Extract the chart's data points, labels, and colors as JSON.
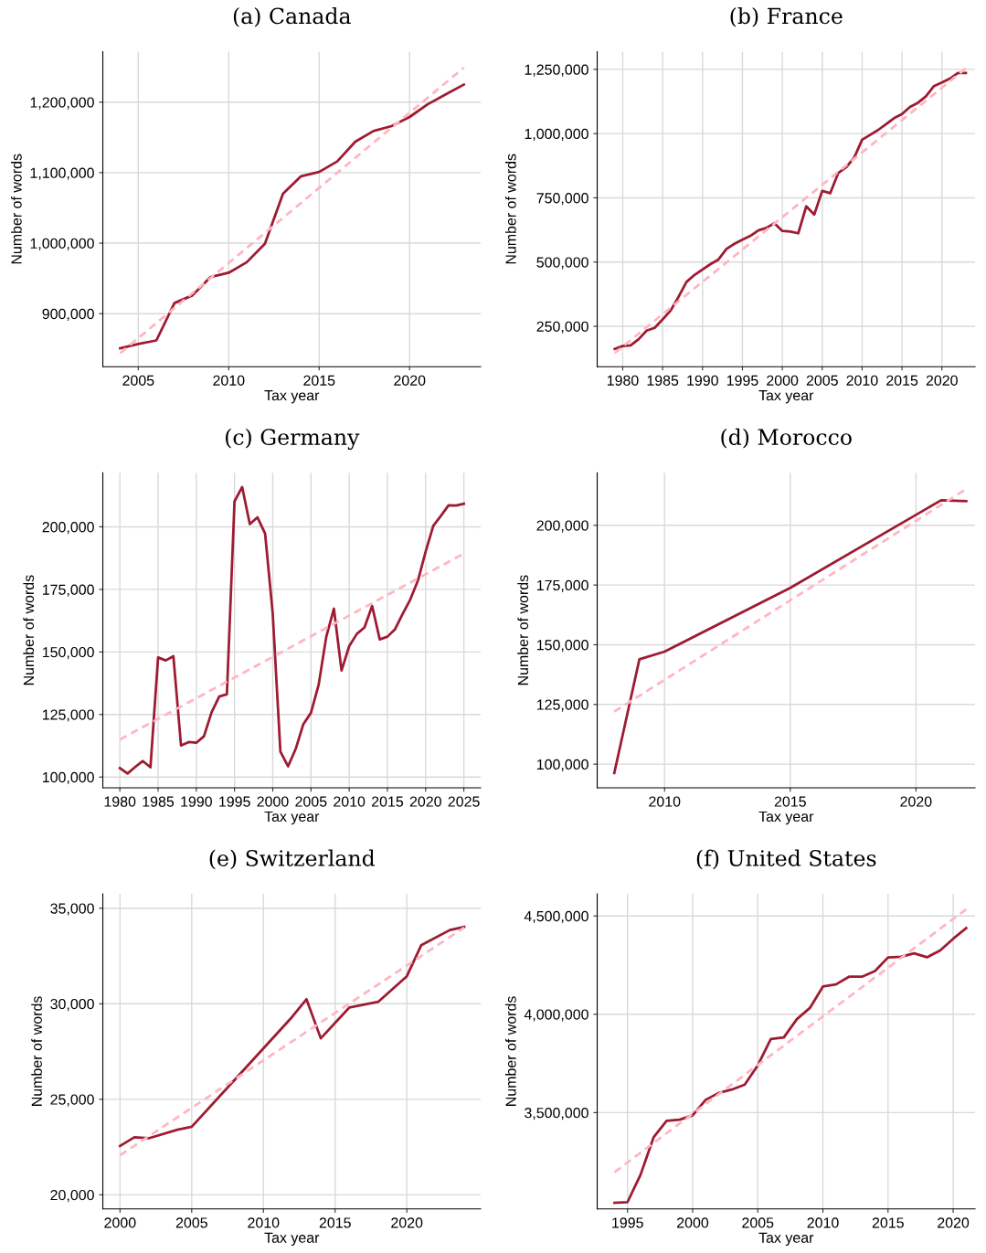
{
  "chart_data": [
    {
      "type": "line",
      "title": "(a) Canada",
      "xlabel": "Tax year",
      "ylabel": "Number of words",
      "grid": true,
      "xlim": [
        2003.04,
        2023.93
      ],
      "ylim": [
        824800,
        1271700
      ],
      "xticks": [
        2005,
        2010,
        2015,
        2020
      ],
      "yticks": [
        {
          "value": 900000,
          "label": "900,000"
        },
        {
          "value": 1000000,
          "label": "1,000,000"
        },
        {
          "value": 1100000,
          "label": "1,100,000"
        },
        {
          "value": 1200000,
          "label": "1,200,000"
        }
      ],
      "series": [
        {
          "color": "#9e1b32",
          "line_style": "solid",
          "x": [
            2004,
            2005,
            2006,
            2007,
            2008,
            2009,
            2010,
            2011,
            2012,
            2013,
            2014,
            2015,
            2016,
            2017,
            2018,
            2019,
            2020,
            2021,
            2022,
            2023
          ],
          "values": [
            851000,
            857000,
            862000,
            915000,
            926000,
            952000,
            958000,
            973000,
            999000,
            1070000,
            1095000,
            1101000,
            1116000,
            1144000,
            1159000,
            1166000,
            1179000,
            1197000,
            1211000,
            1225000
          ]
        },
        {
          "color": "#ffb6c1",
          "line_style": "dashed",
          "x": [
            2004,
            2023
          ],
          "values": [
            844000,
            1249000
          ]
        }
      ]
    },
    {
      "type": "line",
      "title": "(b) France",
      "xlabel": "Tax year",
      "ylabel": "Number of words",
      "grid": true,
      "xlim": [
        1976.8,
        2024.15
      ],
      "ylim": [
        92900,
        1319000
      ],
      "xticks": [
        1980,
        1985,
        1990,
        1995,
        2000,
        2005,
        2010,
        2015,
        2020
      ],
      "yticks": [
        {
          "value": 250000,
          "label": "250,000"
        },
        {
          "value": 500000,
          "label": "500,000"
        },
        {
          "value": 750000,
          "label": "750,000"
        },
        {
          "value": 1000000,
          "label": "1,000,000"
        },
        {
          "value": 1250000,
          "label": "1,250,000"
        }
      ],
      "series": [
        {
          "color": "#9e1b32",
          "line_style": "solid",
          "x": [
            1979,
            1980,
            1981,
            1982,
            1983,
            1984,
            1985,
            1986,
            1987,
            1988,
            1989,
            1990,
            1991,
            1992,
            1993,
            1994,
            1995,
            1996,
            1997,
            1998,
            1999,
            2000,
            2001,
            2002,
            2003,
            2004,
            2005,
            2006,
            2007,
            2008,
            2009,
            2010,
            2011,
            2012,
            2013,
            2014,
            2015,
            2016,
            2017,
            2018,
            2019,
            2020,
            2021,
            2022,
            2023
          ],
          "values": [
            162000,
            173000,
            176000,
            200000,
            233000,
            244000,
            277000,
            311000,
            365000,
            423000,
            450000,
            471000,
            492000,
            510000,
            551000,
            571000,
            587000,
            602000,
            623000,
            633000,
            651000,
            621000,
            619000,
            612000,
            717000,
            685000,
            777000,
            768000,
            846000,
            869000,
            906000,
            976000,
            995000,
            1014000,
            1037000,
            1060000,
            1076000,
            1104000,
            1120000,
            1145000,
            1185000,
            1199000,
            1214000,
            1236000,
            1236000
          ]
        },
        {
          "color": "#ffb6c1",
          "line_style": "dashed",
          "x": [
            1979,
            2023
          ],
          "values": [
            146000,
            1254000
          ]
        }
      ]
    },
    {
      "type": "line",
      "title": "(c) Germany",
      "xlabel": "Tax year",
      "ylabel": "Number of words",
      "grid": true,
      "xlim": [
        1977.77,
        2027.2
      ],
      "ylim": [
        95700,
        221600
      ],
      "xticks": [
        1980,
        1985,
        1990,
        1995,
        2000,
        2005,
        2010,
        2015,
        2020,
        2025
      ],
      "yticks": [
        {
          "value": 100000,
          "label": "100,000"
        },
        {
          "value": 125000,
          "label": "125,000"
        },
        {
          "value": 150000,
          "label": "150,000"
        },
        {
          "value": 175000,
          "label": "175,000"
        },
        {
          "value": 200000,
          "label": "200,000"
        }
      ],
      "series": [
        {
          "color": "#9e1b32",
          "line_style": "solid",
          "x": [
            1980,
            1981,
            1982,
            1983,
            1984,
            1985,
            1986,
            1987,
            1988,
            1989,
            1990,
            1991,
            1992,
            1993,
            1994,
            1995,
            1996,
            1997,
            1998,
            1999,
            2000,
            2001,
            2002,
            2003,
            2004,
            2005,
            2006,
            2007,
            2008,
            2009,
            2010,
            2011,
            2012,
            2013,
            2014,
            2015,
            2016,
            2017,
            2018,
            2019,
            2020,
            2021,
            2022,
            2023,
            2024,
            2025
          ],
          "values": [
            103600,
            101400,
            104000,
            106400,
            103900,
            147800,
            146600,
            148300,
            112600,
            114000,
            113700,
            116300,
            125900,
            132200,
            133100,
            210200,
            215900,
            201100,
            203800,
            197300,
            165200,
            110200,
            104300,
            111200,
            121100,
            125700,
            136800,
            156000,
            167300,
            142600,
            152300,
            157200,
            159800,
            168400,
            155000,
            156100,
            159100,
            165200,
            171000,
            178600,
            190100,
            200400,
            204400,
            208600,
            208500,
            209200
          ]
        },
        {
          "color": "#ffb6c1",
          "line_style": "dashed",
          "x": [
            1980,
            2025
          ],
          "values": [
            115000,
            189300
          ]
        }
      ]
    },
    {
      "type": "line",
      "title": "(d) Morocco",
      "xlabel": "Tax year",
      "ylabel": "Number of words",
      "grid": true,
      "xlim": [
        2007.32,
        2022.35
      ],
      "ylim": [
        90100,
        222000
      ],
      "xticks": [
        2010,
        2015,
        2020
      ],
      "yticks": [
        {
          "value": 100000,
          "label": "100,000"
        },
        {
          "value": 125000,
          "label": "125,000"
        },
        {
          "value": 150000,
          "label": "150,000"
        },
        {
          "value": 175000,
          "label": "175,000"
        },
        {
          "value": 200000,
          "label": "200,000"
        }
      ],
      "series": [
        {
          "color": "#9e1b32",
          "line_style": "solid",
          "x": [
            2008,
            2009,
            2010,
            2015,
            2021,
            2022
          ],
          "values": [
            96300,
            143900,
            147100,
            173800,
            210500,
            210100
          ]
        },
        {
          "color": "#ffb6c1",
          "line_style": "dashed",
          "x": [
            2008,
            2022
          ],
          "values": [
            122000,
            215200
          ]
        }
      ]
    },
    {
      "type": "line",
      "title": "(e) Switzerland",
      "xlabel": "Tax year",
      "ylabel": "Number of words",
      "grid": true,
      "xlim": [
        1998.8,
        2025.15
      ],
      "ylim": [
        19260,
        35750
      ],
      "xticks": [
        2000,
        2005,
        2010,
        2015,
        2020
      ],
      "yticks": [
        {
          "value": 20000,
          "label": "20,000"
        },
        {
          "value": 25000,
          "label": "25,000"
        },
        {
          "value": 30000,
          "label": "30,000"
        },
        {
          "value": 35000,
          "label": "35,000"
        }
      ],
      "series": [
        {
          "color": "#9e1b32",
          "line_style": "solid",
          "x": [
            2000,
            2001,
            2002,
            2004,
            2005,
            2012,
            2013,
            2014,
            2016,
            2018,
            2020,
            2021,
            2023,
            2024
          ],
          "values": [
            22560,
            23010,
            22960,
            23410,
            23560,
            29310,
            30240,
            28190,
            29810,
            30100,
            31440,
            33060,
            33860,
            34020
          ]
        },
        {
          "color": "#ffb6c1",
          "line_style": "dashed",
          "x": [
            2000,
            2024
          ],
          "values": [
            22070,
            33990
          ]
        }
      ]
    },
    {
      "type": "line",
      "title": "(f) United States",
      "xlabel": "Tax year",
      "ylabel": "Number of words",
      "grid": true,
      "xlim": [
        1992.67,
        2021.68
      ],
      "ylim": [
        3010000,
        4612000
      ],
      "xticks": [
        1995,
        2000,
        2005,
        2010,
        2015,
        2020
      ],
      "yticks": [
        {
          "value": 3500000,
          "label": "3,500,000"
        },
        {
          "value": 4000000,
          "label": "4,000,000"
        },
        {
          "value": 4500000,
          "label": "4,500,000"
        }
      ],
      "series": [
        {
          "color": "#9e1b32",
          "line_style": "solid",
          "x": [
            1994,
            1995,
            1996,
            1997,
            1998,
            1999,
            2000,
            2001,
            2002,
            2003,
            2004,
            2005,
            2006,
            2007,
            2008,
            2009,
            2010,
            2011,
            2012,
            2013,
            2014,
            2015,
            2016,
            2017,
            2018,
            2019,
            2020,
            2021
          ],
          "values": [
            3041000,
            3045000,
            3184000,
            3374000,
            3458000,
            3464000,
            3486000,
            3565000,
            3600000,
            3617000,
            3642000,
            3740000,
            3874000,
            3882000,
            3975000,
            4032000,
            4141000,
            4152000,
            4191000,
            4191000,
            4220000,
            4289000,
            4292000,
            4310000,
            4290000,
            4324000,
            4384000,
            4438000
          ]
        },
        {
          "color": "#ffb6c1",
          "line_style": "dashed",
          "x": [
            1994,
            2021
          ],
          "values": [
            3197000,
            4534000
          ]
        }
      ]
    }
  ]
}
